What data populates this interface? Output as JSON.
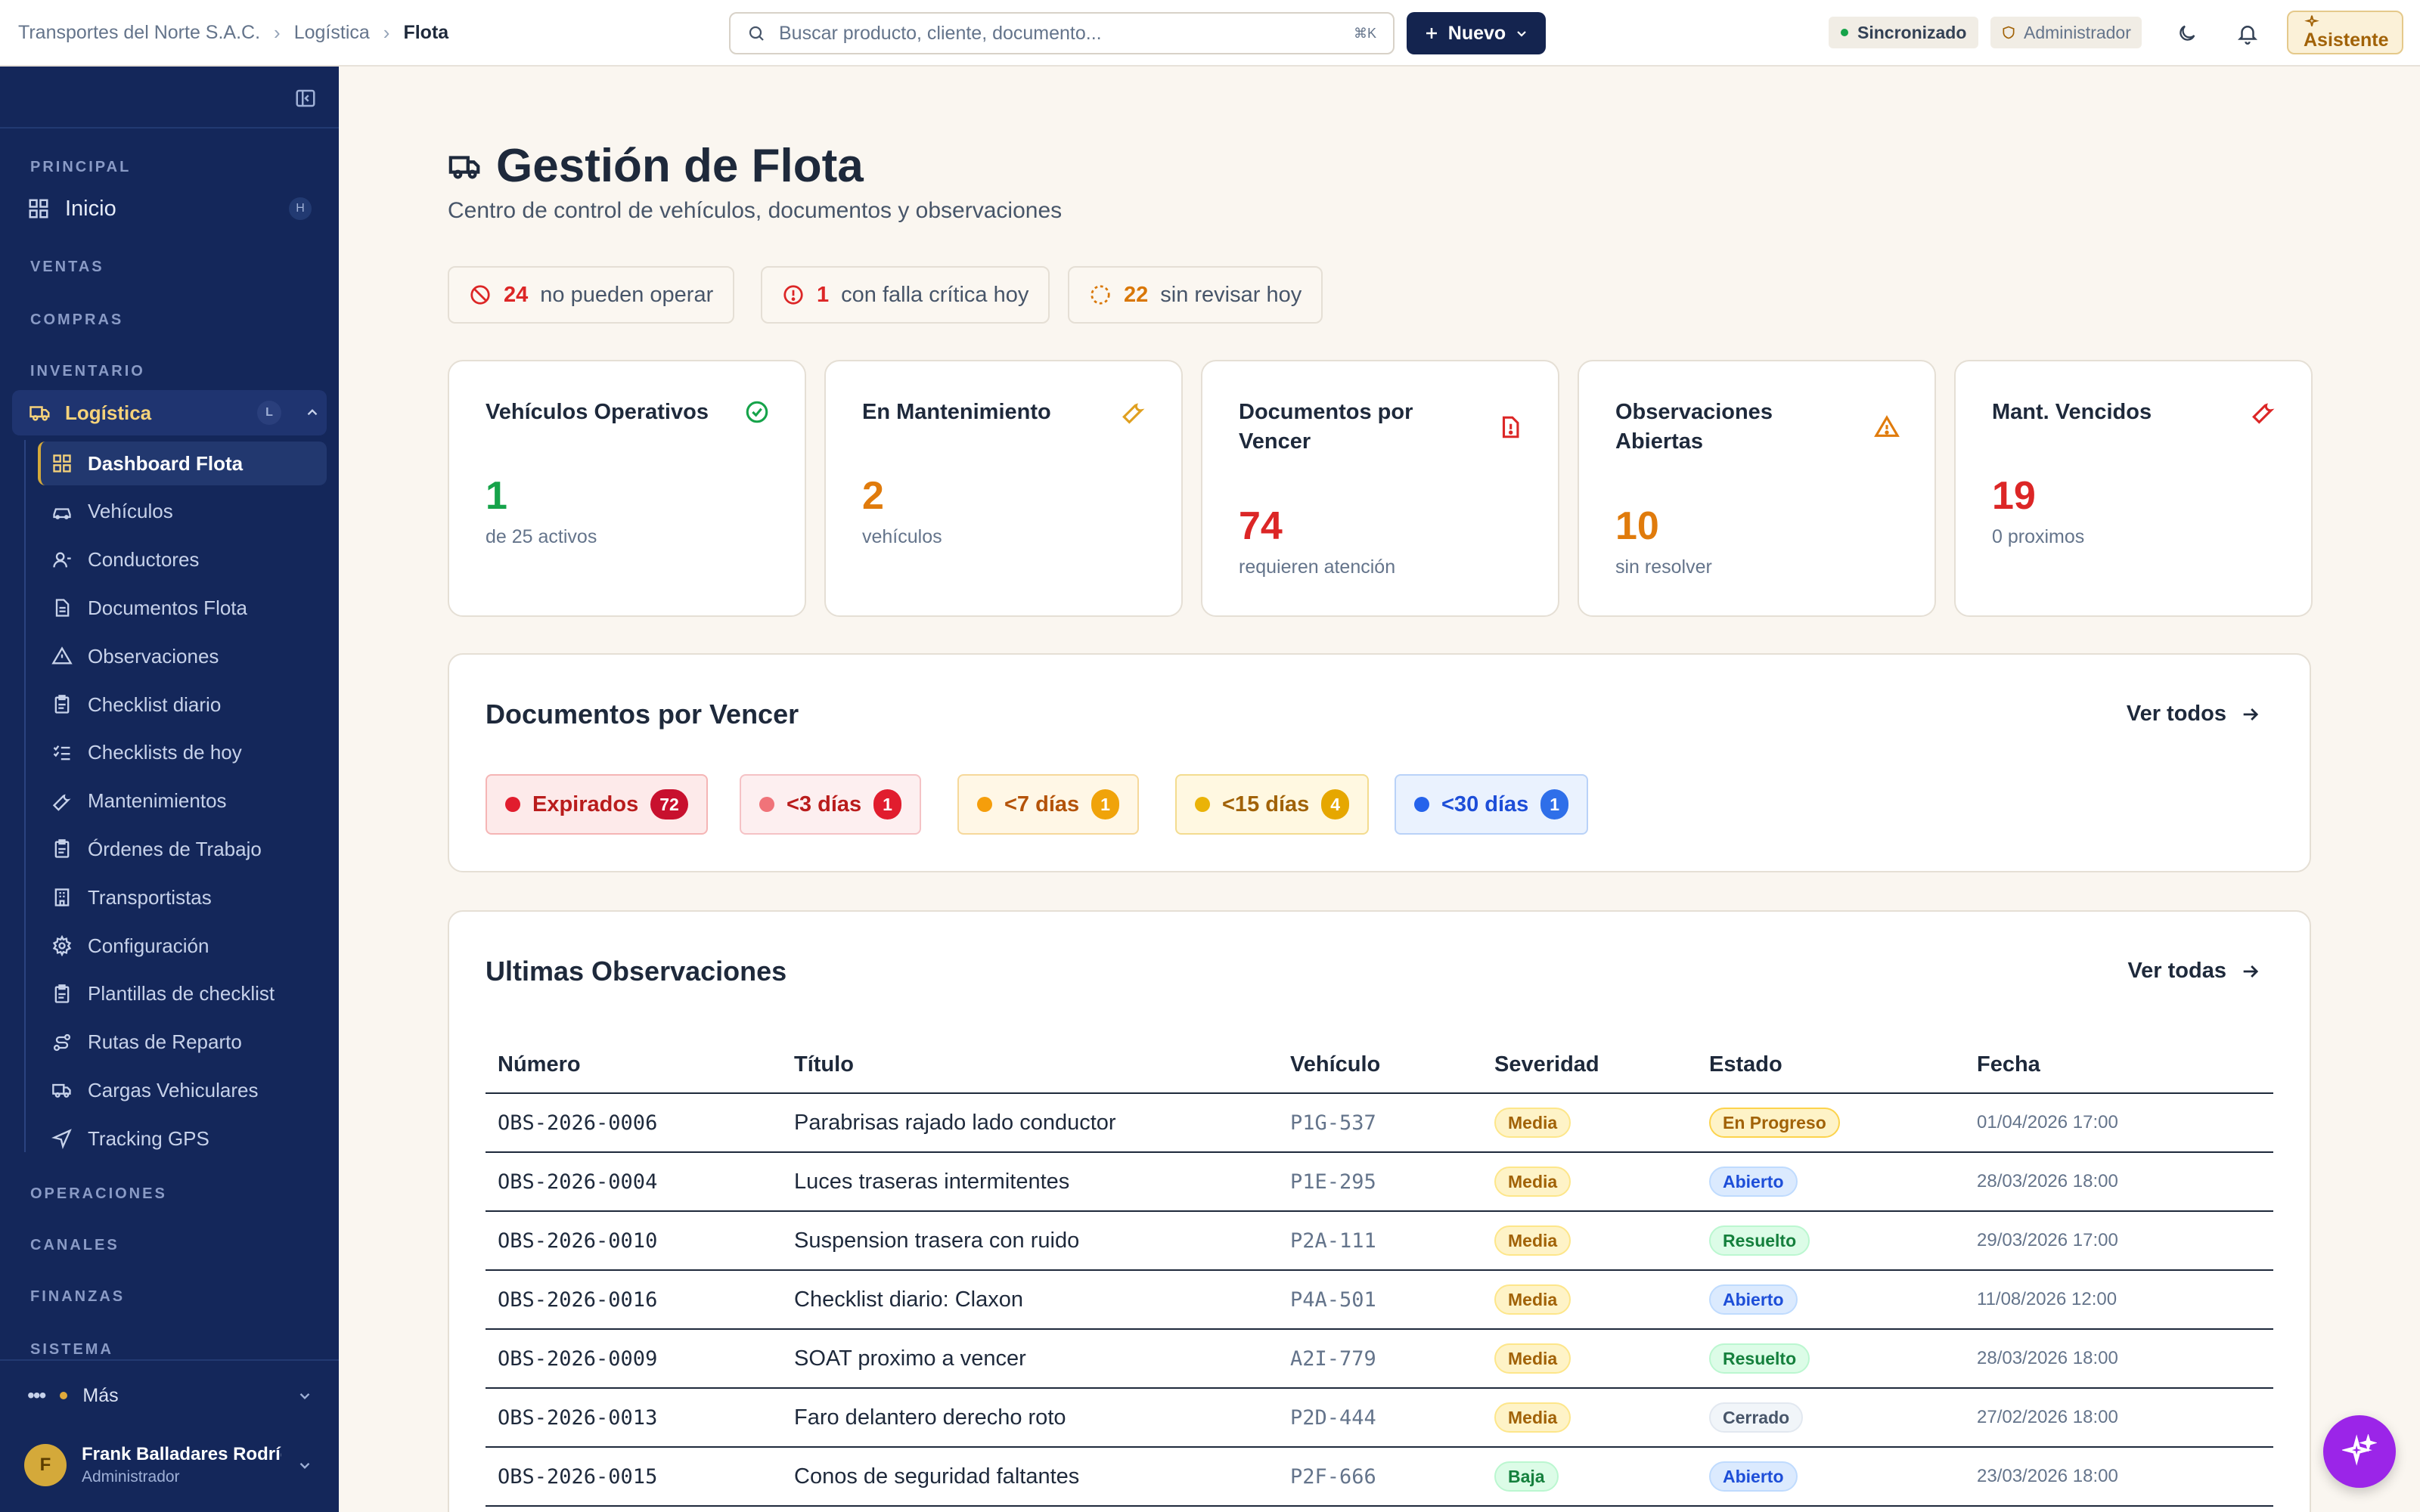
{
  "header": {
    "breadcrumb": [
      "Transportes del Norte S.A.C.",
      "Logística",
      "Flota"
    ],
    "search_placeholder": "Buscar producto, cliente, documento...",
    "search_shortcut": "⌘K",
    "new_label": "Nuevo",
    "sync_label": "Sincronizado",
    "role_label": "Administrador",
    "assistant_label": "Asistente"
  },
  "sidebar": {
    "sections": {
      "principal": "PRINCIPAL",
      "ventas": "VENTAS",
      "compras": "COMPRAS",
      "inventario": "INVENTARIO",
      "operaciones": "OPERACIONES",
      "canales": "CANALES",
      "finanzas": "FINANZAS",
      "sistema": "SISTEMA"
    },
    "home": {
      "label": "Inicio",
      "shortcut": "H"
    },
    "group": {
      "label": "Logística",
      "shortcut": "L"
    },
    "items": [
      {
        "label": "Dashboard Flota",
        "icon": "grid-icon"
      },
      {
        "label": "Vehículos",
        "icon": "car-icon"
      },
      {
        "label": "Conductores",
        "icon": "user-icon"
      },
      {
        "label": "Documentos Flota",
        "icon": "document-icon"
      },
      {
        "label": "Observaciones",
        "icon": "warning-icon"
      },
      {
        "label": "Checklist diario",
        "icon": "clipboard-icon"
      },
      {
        "label": "Checklists de hoy",
        "icon": "list-check-icon"
      },
      {
        "label": "Mantenimientos",
        "icon": "wrench-icon"
      },
      {
        "label": "Órdenes de Trabajo",
        "icon": "clipboard-icon"
      },
      {
        "label": "Transportistas",
        "icon": "building-icon"
      },
      {
        "label": "Configuración",
        "icon": "gear-icon"
      },
      {
        "label": "Plantillas de checklist",
        "icon": "clipboard-icon"
      },
      {
        "label": "Rutas de Reparto",
        "icon": "route-icon"
      },
      {
        "label": "Cargas Vehiculares",
        "icon": "truck-icon"
      },
      {
        "label": "Tracking GPS",
        "icon": "navigation-icon"
      }
    ],
    "more_label": "Más",
    "user": {
      "initial": "F",
      "name": "Frank Balladares Rodríguez",
      "role": "Administrador"
    }
  },
  "page": {
    "title": "Gestión de Flota",
    "subtitle": "Centro de control de vehículos, documentos y observaciones",
    "alerts": [
      {
        "count": "24",
        "text": "no pueden operar",
        "color": "#dc2626"
      },
      {
        "count": "1",
        "text": "con falla crítica hoy",
        "color": "#dc2626"
      },
      {
        "count": "22",
        "text": "sin revisar hoy",
        "color": "#d97706"
      }
    ]
  },
  "kpis": [
    {
      "label": "Vehículos Operativos",
      "value": "1",
      "caption": "de 25 activos",
      "color": "#16a34a",
      "icon": "check-circle-icon"
    },
    {
      "label": "En Mantenimiento",
      "value": "2",
      "caption": "vehículos",
      "color": "#e07b0c",
      "icon": "wrench-icon"
    },
    {
      "label": "Documentos por Vencer",
      "value": "74",
      "caption": "requieren atención",
      "color": "#dc2626",
      "icon": "file-alert-icon"
    },
    {
      "label": "Observaciones Abiertas",
      "value": "10",
      "caption": "sin resolver",
      "color": "#e07b0c",
      "icon": "warning-icon"
    },
    {
      "label": "Mant. Vencidos",
      "value": "19",
      "caption": "0 proximos",
      "color": "#dc2626",
      "icon": "wrench-icon"
    }
  ],
  "documents": {
    "title": "Documentos por Vencer",
    "link": "Ver todos",
    "chips": [
      {
        "label": "Expirados",
        "count": "72"
      },
      {
        "label": "<3 días",
        "count": "1"
      },
      {
        "label": "<7 días",
        "count": "1"
      },
      {
        "label": "<15 días",
        "count": "4"
      },
      {
        "label": "<30 días",
        "count": "1"
      }
    ]
  },
  "observations": {
    "title": "Ultimas Observaciones",
    "link": "Ver todas",
    "columns": [
      "Número",
      "Título",
      "Vehículo",
      "Severidad",
      "Estado",
      "Fecha"
    ],
    "rows": [
      {
        "num": "OBS-2026-0006",
        "title": "Parabrisas rajado lado conductor",
        "vehicle": "P1G-537",
        "severity": "Media",
        "status": "En Progreso",
        "date": "01/04/2026 17:00"
      },
      {
        "num": "OBS-2026-0004",
        "title": "Luces traseras intermitentes",
        "vehicle": "P1E-295",
        "severity": "Media",
        "status": "Abierto",
        "date": "28/03/2026 18:00"
      },
      {
        "num": "OBS-2026-0010",
        "title": "Suspension trasera con ruido",
        "vehicle": "P2A-111",
        "severity": "Media",
        "status": "Resuelto",
        "date": "29/03/2026 17:00"
      },
      {
        "num": "OBS-2026-0016",
        "title": "Checklist diario: Claxon",
        "vehicle": "P4A-501",
        "severity": "Media",
        "status": "Abierto",
        "date": "11/08/2026 12:00"
      },
      {
        "num": "OBS-2026-0009",
        "title": "SOAT proximo a vencer",
        "vehicle": "A2I-779",
        "severity": "Media",
        "status": "Resuelto",
        "date": "28/03/2026 18:00"
      },
      {
        "num": "OBS-2026-0013",
        "title": "Faro delantero derecho roto",
        "vehicle": "P2D-444",
        "severity": "Media",
        "status": "Cerrado",
        "date": "27/02/2026 18:00"
      },
      {
        "num": "OBS-2026-0015",
        "title": "Conos de seguridad faltantes",
        "vehicle": "P2F-666",
        "severity": "Baja",
        "status": "Abierto",
        "date": "23/03/2026 18:00"
      }
    ]
  }
}
